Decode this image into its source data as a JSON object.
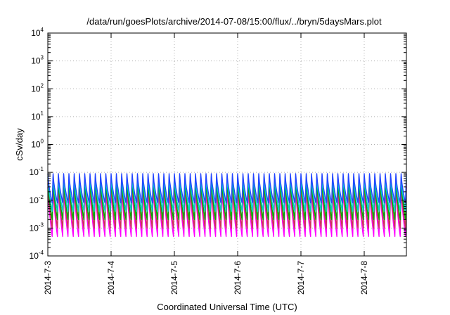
{
  "chart_data": {
    "type": "line",
    "title": "/data/run/goesPlots/archive/2014-07-08/15:00/flux/../bryn/5daysMars.plot",
    "xlabel": "Coordinated Universal Time (UTC)",
    "ylabel": "cSv/day",
    "yscale": "log",
    "ylim": [
      0.0001,
      10000
    ],
    "xlim": [
      "2014-07-03T00:00",
      "2014-07-08T16:00"
    ],
    "grid": true,
    "x_tick_labels": [
      "2014-7-3",
      "2014-7-4",
      "2014-7-5",
      "2014-7-6",
      "2014-7-7",
      "2014-7-8"
    ],
    "y_ticks": [
      {
        "base": "10",
        "exp": "-4"
      },
      {
        "base": "10",
        "exp": "-3"
      },
      {
        "base": "10",
        "exp": "-2"
      },
      {
        "base": "10",
        "exp": "-1"
      },
      {
        "base": "10",
        "exp": "0"
      },
      {
        "base": "10",
        "exp": "1"
      },
      {
        "base": "10",
        "exp": "2"
      },
      {
        "base": "10",
        "exp": "3"
      },
      {
        "base": "10",
        "exp": "4"
      }
    ],
    "cycles_per_day": 12,
    "series": [
      {
        "color": "#ff00ff",
        "max": 0.03,
        "min": 0.0005
      },
      {
        "color": "#cc3355",
        "max": 0.04,
        "min": 0.001
      },
      {
        "color": "#00aa00",
        "max": 0.055,
        "min": 0.002
      },
      {
        "color": "#00cccc",
        "max": 0.07,
        "min": 0.004
      },
      {
        "color": "#2244ff",
        "max": 0.09,
        "min": 0.008
      }
    ]
  }
}
